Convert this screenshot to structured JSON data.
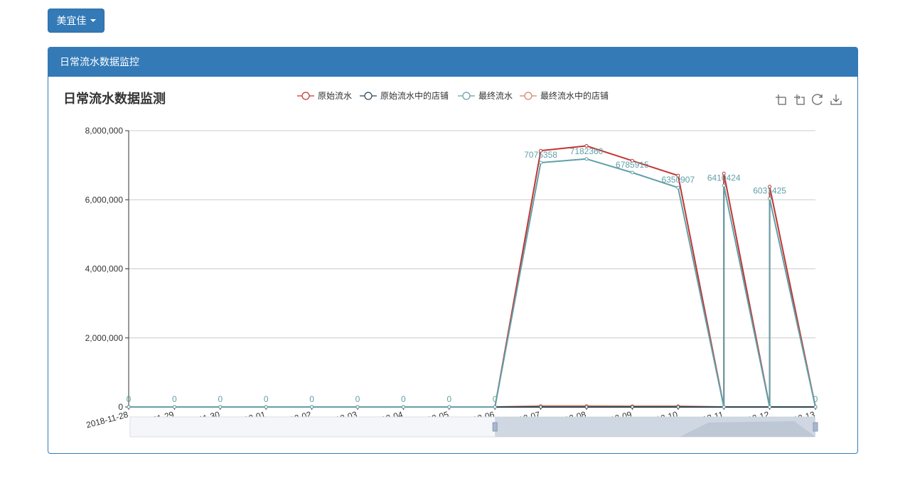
{
  "store_selector": {
    "label": "美宜佳"
  },
  "panel": {
    "title": "日常流水数据监控"
  },
  "toolbox": [
    "zoom-icon",
    "zoom-reset-icon",
    "restore-icon",
    "save-image-icon"
  ],
  "chart_data": {
    "type": "line",
    "title": "日常流水数据监测",
    "xlabel": "",
    "ylabel": "",
    "ylim": [
      0,
      8000000
    ],
    "yticks": [
      0,
      2000000,
      4000000,
      6000000,
      8000000
    ],
    "ytick_labels": [
      "0",
      "2,000,000",
      "4,000,000",
      "6,000,000",
      "8,000,000"
    ],
    "grid": true,
    "legend_position": "top-center",
    "categories": [
      "2018-11-28",
      "2018-11-29",
      "2018-11-30",
      "2018-12-01",
      "2018-12-02",
      "2018-12-03",
      "2018-12-04",
      "2018-12-05",
      "2018-12-06",
      "2018-12-07",
      "2018-12-08",
      "2018-12-09",
      "2018-12-10",
      "2018-12-11",
      "2018-12-12",
      "2018-12-13"
    ],
    "tick_labels": [
      "2018-11-28",
      "2018-11-29",
      "2018-11-30",
      "2018-12-01",
      "2018-12-02",
      "2018-12-03",
      "2018-12-04",
      "2018-12-05",
      "2018-12-06",
      "2018-12-07",
      "2018-12-08",
      "2018-12-09",
      "2018-12-10",
      "2018-12-11",
      "2018-12-12",
      "2018-12-13"
    ],
    "series": [
      {
        "name": "原始流水",
        "color": "#c23531",
        "points": [
          [
            "2018-11-28",
            0
          ],
          [
            "2018-11-29",
            0
          ],
          [
            "2018-11-30",
            0
          ],
          [
            "2018-12-01",
            0
          ],
          [
            "2018-12-02",
            0
          ],
          [
            "2018-12-03",
            0
          ],
          [
            "2018-12-04",
            0
          ],
          [
            "2018-12-05",
            0
          ],
          [
            "2018-12-06",
            0
          ],
          [
            "2018-12-07",
            7420000
          ],
          [
            "2018-12-08",
            7560000
          ],
          [
            "2018-12-09",
            7130000
          ],
          [
            "2018-12-10",
            6700000
          ],
          [
            "2018-12-11",
            0
          ],
          [
            "2018-12-11",
            6760000
          ],
          [
            "2018-12-12",
            0
          ],
          [
            "2018-12-12",
            6380000
          ],
          [
            "2018-12-13",
            0
          ]
        ]
      },
      {
        "name": "原始流水中的店铺",
        "color": "#2f4554",
        "points": [
          [
            "2018-11-28",
            0
          ],
          [
            "2018-11-29",
            0
          ],
          [
            "2018-11-30",
            0
          ],
          [
            "2018-12-01",
            0
          ],
          [
            "2018-12-02",
            0
          ],
          [
            "2018-12-03",
            0
          ],
          [
            "2018-12-04",
            0
          ],
          [
            "2018-12-05",
            0
          ],
          [
            "2018-12-06",
            0
          ],
          [
            "2018-12-07",
            0
          ],
          [
            "2018-12-08",
            0
          ],
          [
            "2018-12-09",
            0
          ],
          [
            "2018-12-10",
            0
          ],
          [
            "2018-12-11",
            0
          ],
          [
            "2018-12-12",
            0
          ],
          [
            "2018-12-13",
            0
          ]
        ]
      },
      {
        "name": "最终流水",
        "color": "#61a0a8",
        "labels_shown": true,
        "points": [
          [
            "2018-11-28",
            0
          ],
          [
            "2018-11-29",
            0
          ],
          [
            "2018-11-30",
            0
          ],
          [
            "2018-12-01",
            0
          ],
          [
            "2018-12-02",
            0
          ],
          [
            "2018-12-03",
            0
          ],
          [
            "2018-12-04",
            0
          ],
          [
            "2018-12-05",
            0
          ],
          [
            "2018-12-06",
            0
          ],
          [
            "2018-12-07",
            7075358
          ],
          [
            "2018-12-08",
            7182360
          ],
          [
            "2018-12-09",
            6785915
          ],
          [
            "2018-12-10",
            6350907
          ],
          [
            "2018-12-11",
            0
          ],
          [
            "2018-12-11",
            6410424
          ],
          [
            "2018-12-12",
            0
          ],
          [
            "2018-12-12",
            6031425
          ],
          [
            "2018-12-13",
            0
          ]
        ],
        "data_labels": [
          [
            "2018-11-28",
            "0"
          ],
          [
            "2018-11-29",
            "0"
          ],
          [
            "2018-11-30",
            "0"
          ],
          [
            "2018-12-01",
            "0"
          ],
          [
            "2018-12-02",
            "0"
          ],
          [
            "2018-12-03",
            "0"
          ],
          [
            "2018-12-04",
            "0"
          ],
          [
            "2018-12-05",
            "0"
          ],
          [
            "2018-12-06",
            "0"
          ],
          [
            "2018-12-07",
            "7075358"
          ],
          [
            "2018-12-08",
            "7182360"
          ],
          [
            "2018-12-09",
            "6785915"
          ],
          [
            "2018-12-10",
            "6350907"
          ],
          [
            "2018-12-11",
            "6410424"
          ],
          [
            "2018-12-12",
            "6031425"
          ],
          [
            "2018-12-13",
            "0"
          ]
        ]
      },
      {
        "name": "最终流水中的店铺",
        "color": "#d48265",
        "points": [
          [
            "2018-11-28",
            0
          ],
          [
            "2018-11-29",
            0
          ],
          [
            "2018-11-30",
            0
          ],
          [
            "2018-12-01",
            0
          ],
          [
            "2018-12-02",
            0
          ],
          [
            "2018-12-03",
            0
          ],
          [
            "2018-12-04",
            0
          ],
          [
            "2018-12-05",
            0
          ],
          [
            "2018-12-06",
            0
          ],
          [
            "2018-12-07",
            30000
          ],
          [
            "2018-12-08",
            30000
          ],
          [
            "2018-12-09",
            25000
          ],
          [
            "2018-12-10",
            25000
          ],
          [
            "2018-12-11",
            0
          ],
          [
            "2018-12-12",
            0
          ],
          [
            "2018-12-13",
            0
          ]
        ]
      }
    ],
    "data_zoom": {
      "start_category": "2018-12-06",
      "end_category": "2018-12-13"
    }
  }
}
